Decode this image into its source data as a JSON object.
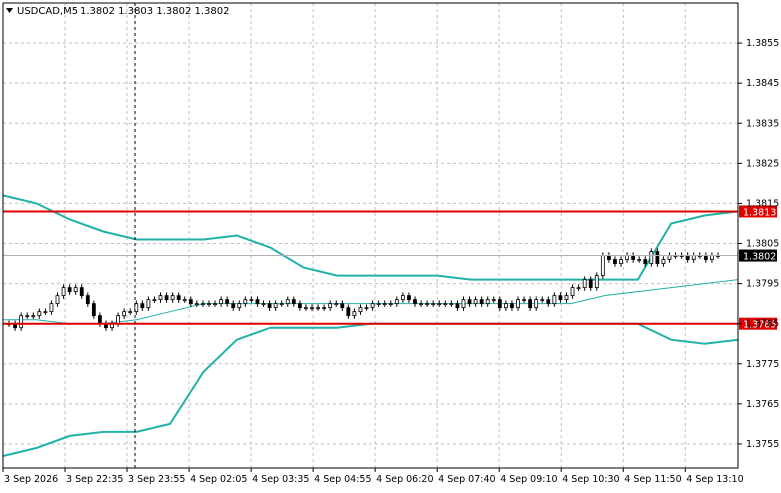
{
  "header": {
    "symbol": "USDCAD,M5",
    "ohlc": "1.3802 1.3803 1.3802 1.3802"
  },
  "colors": {
    "background": "#ffffff",
    "grid": "#c0c0c0",
    "candle": "#000000",
    "bollinger": "#20b2aa",
    "level_line": "#e00000",
    "bid_line": "#b0b0b0"
  },
  "chart_data": {
    "type": "candlestick",
    "title": "USDCAD,M5",
    "ylim": [
      1.3749,
      1.3865
    ],
    "y_ticks": [
      "1.3855",
      "1.3845",
      "1.3835",
      "1.3825",
      "1.3815",
      "1.3805",
      "1.3795",
      "1.3785",
      "1.3775",
      "1.3765",
      "1.3755"
    ],
    "x_ticks": [
      "3 Sep 2026",
      "3 Sep 22:35",
      "3 Sep 23:55",
      "4 Sep 02:05",
      "4 Sep 03:35",
      "4 Sep 04:55",
      "4 Sep 06:20",
      "4 Sep 07:40",
      "4 Sep 09:10",
      "4 Sep 10:30",
      "4 Sep 11:50",
      "4 Sep 13:10"
    ],
    "grid": true,
    "levels": [
      {
        "label": "1.3813",
        "value": 1.3813,
        "color": "#e00000"
      },
      {
        "label": "1.3785",
        "value": 1.3785,
        "color": "#e00000"
      }
    ],
    "current_price": {
      "label": "1.3802",
      "value": 1.3802
    },
    "crosshair_x_label": "3 Sep 23:55",
    "close": [
      1.3785,
      1.3784,
      1.3787,
      1.3787,
      1.3787,
      1.3788,
      1.3788,
      1.379,
      1.3792,
      1.3794,
      1.3793,
      1.3794,
      1.3792,
      1.379,
      1.3787,
      1.3785,
      1.3784,
      1.3785,
      1.3787,
      1.3788,
      1.3788,
      1.379,
      1.3789,
      1.3791,
      1.3791,
      1.3792,
      1.3791,
      1.3792,
      1.3791,
      1.3791,
      1.379,
      1.379,
      1.379,
      1.379,
      1.379,
      1.3791,
      1.379,
      1.3789,
      1.379,
      1.3791,
      1.3791,
      1.379,
      1.379,
      1.3789,
      1.379,
      1.379,
      1.3791,
      1.379,
      1.3789,
      1.3789,
      1.3789,
      1.3789,
      1.3789,
      1.379,
      1.379,
      1.3789,
      1.3787,
      1.3788,
      1.3789,
      1.3789,
      1.379,
      1.379,
      1.379,
      1.379,
      1.3791,
      1.3792,
      1.3791,
      1.379,
      1.379,
      1.379,
      1.379,
      1.379,
      1.379,
      1.379,
      1.3789,
      1.3791,
      1.379,
      1.3791,
      1.379,
      1.3791,
      1.3791,
      1.3789,
      1.379,
      1.3789,
      1.3791,
      1.3791,
      1.3789,
      1.3791,
      1.3791,
      1.379,
      1.3792,
      1.3791,
      1.3792,
      1.3794,
      1.3794,
      1.3796,
      1.3794,
      1.3797,
      1.3802,
      1.3801,
      1.38,
      1.3801,
      1.3802,
      1.3801,
      1.3801,
      1.38,
      1.3803,
      1.38,
      1.3801,
      1.3802,
      1.3802,
      1.3802,
      1.3801,
      1.3802,
      1.3802,
      1.3801,
      1.3802,
      1.3802
    ],
    "bb_upper": [
      1.3817,
      1.3815,
      1.3811,
      1.3808,
      1.3806,
      1.3806,
      1.3806,
      1.3807,
      1.3804,
      1.3799,
      1.3797,
      1.3797,
      1.3797,
      1.3797,
      1.3796,
      1.3796,
      1.3796,
      1.3796,
      1.3796,
      1.3796,
      1.381,
      1.3812,
      1.3813
    ],
    "bb_middle": [
      1.3786,
      1.3786,
      1.3785,
      1.3785,
      1.3786,
      1.3788,
      1.379,
      1.379,
      1.379,
      1.379,
      1.379,
      1.379,
      1.379,
      1.379,
      1.379,
      1.379,
      1.379,
      1.379,
      1.3792,
      1.3793,
      1.3794,
      1.3795,
      1.3796
    ],
    "bb_lower": [
      1.3752,
      1.3754,
      1.3757,
      1.3758,
      1.3758,
      1.376,
      1.3773,
      1.3781,
      1.3784,
      1.3784,
      1.3784,
      1.3785,
      1.3785,
      1.3785,
      1.3785,
      1.3785,
      1.3785,
      1.3785,
      1.3785,
      1.3785,
      1.3781,
      1.378,
      1.3781
    ]
  }
}
